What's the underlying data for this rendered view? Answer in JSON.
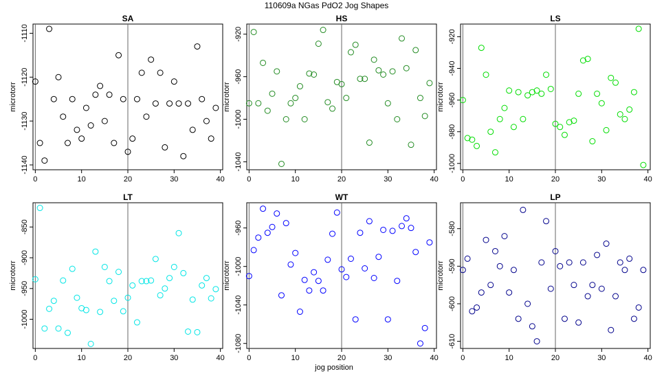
{
  "figure": {
    "title": "110609a   NGas PdO2 Jog Shapes",
    "xlabel": "jog position"
  },
  "chart_data": [
    {
      "type": "scatter",
      "title": "SA",
      "ylabel": "microtorr",
      "color": "#000000",
      "xlim": [
        -0.5,
        40.5
      ],
      "ylim": [
        -1141.1,
        -1107.9
      ],
      "xticks": [
        0,
        10,
        20,
        30,
        40
      ],
      "yticks": [
        -1140,
        -1130,
        -1120,
        -1110
      ],
      "vline": 20,
      "x": [
        0,
        1,
        2,
        3,
        4,
        5,
        6,
        7,
        8,
        9,
        10,
        11,
        12,
        13,
        14,
        15,
        16,
        17,
        18,
        19,
        20,
        21,
        22,
        23,
        24,
        25,
        26,
        27,
        28,
        29,
        30,
        31,
        32,
        33,
        34,
        35,
        36,
        37,
        38,
        39
      ],
      "y": [
        -1121,
        -1135,
        -1139,
        -1109,
        -1125,
        -1120,
        -1129,
        -1135,
        -1125,
        -1132,
        -1134,
        -1127,
        -1131,
        -1124,
        -1122,
        -1130,
        -1124,
        -1135,
        -1115,
        -1125,
        -1137,
        -1134,
        -1125,
        -1119,
        -1129,
        -1116,
        -1126,
        -1119,
        -1136,
        -1126,
        -1121,
        -1126,
        -1138,
        -1126,
        -1132,
        -1113,
        -1125,
        -1130,
        -1134,
        -1127
      ]
    },
    {
      "type": "scatter",
      "title": "HS",
      "ylabel": "microtorr",
      "color": "#228b22",
      "xlim": [
        -0.5,
        40.5
      ],
      "ylim": [
        -1047.5,
        -910.5
      ],
      "xticks": [
        0,
        10,
        20,
        30,
        40
      ],
      "yticks": [
        -1040,
        -1000,
        -960,
        -920
      ],
      "vline": 20,
      "x": [
        0,
        1,
        2,
        3,
        4,
        5,
        6,
        7,
        8,
        9,
        10,
        11,
        12,
        13,
        14,
        15,
        16,
        17,
        18,
        19,
        20,
        21,
        22,
        23,
        24,
        25,
        26,
        27,
        28,
        29,
        30,
        31,
        32,
        33,
        34,
        35,
        36,
        37,
        38,
        39
      ],
      "y": [
        -985,
        -918,
        -985,
        -947,
        -992,
        -976,
        -955,
        -1042,
        -1000,
        -985,
        -980,
        -969,
        -1000,
        -957,
        -958,
        -929,
        -916,
        -984,
        -990,
        -965,
        -967,
        -980,
        -937,
        -930,
        -962,
        -962,
        -1022,
        -944,
        -954,
        -958,
        -985,
        -955,
        -1000,
        -924,
        -952,
        -1024,
        -935,
        -980,
        -997,
        -966
      ]
    },
    {
      "type": "scatter",
      "title": "LS",
      "ylabel": "microtorr",
      "color": "#00dd00",
      "xlim": [
        -0.5,
        40.5
      ],
      "ylim": [
        -1004.0,
        -912.0
      ],
      "xticks": [
        0,
        10,
        20,
        30,
        40
      ],
      "yticks": [
        -1000,
        -980,
        -960,
        -940,
        -920
      ],
      "vline": 20,
      "x": [
        0,
        1,
        2,
        3,
        4,
        5,
        6,
        7,
        8,
        9,
        10,
        11,
        12,
        13,
        14,
        15,
        16,
        17,
        18,
        19,
        20,
        21,
        22,
        23,
        24,
        25,
        26,
        27,
        28,
        29,
        30,
        31,
        32,
        33,
        34,
        35,
        36,
        37,
        38,
        39
      ],
      "y": [
        -960,
        -984,
        -985,
        -989,
        -927,
        -944,
        -980,
        -993,
        -972,
        -965,
        -954,
        -977,
        -955,
        -972,
        -957,
        -955,
        -954,
        -956,
        -944,
        -953,
        -975,
        -977,
        -982,
        -974,
        -973,
        -956,
        -935,
        -934,
        -986,
        -956,
        -962,
        -979,
        -946,
        -949,
        -969,
        -972,
        -966,
        -955,
        -915,
        -1001
      ]
    },
    {
      "type": "scatter",
      "title": "LT",
      "ylabel": "microtorr",
      "color": "#00e5e5",
      "xlim": [
        -0.5,
        40.5
      ],
      "ylim": [
        -1047.4,
        -810.6
      ],
      "xticks": [
        0,
        10,
        20,
        30,
        40
      ],
      "yticks": [
        -1000,
        -950,
        -900,
        -850
      ],
      "vline": 20,
      "x": [
        0,
        1,
        2,
        3,
        4,
        5,
        6,
        7,
        8,
        9,
        10,
        11,
        12,
        13,
        14,
        15,
        16,
        17,
        18,
        19,
        20,
        21,
        22,
        23,
        24,
        25,
        26,
        27,
        28,
        29,
        30,
        31,
        32,
        33,
        34,
        35,
        36,
        37,
        38,
        39
      ],
      "y": [
        -935,
        -819,
        -1015,
        -983,
        -970,
        -1015,
        -937,
        -1022,
        -918,
        -965,
        -982,
        -985,
        -1040,
        -890,
        -988,
        -915,
        -938,
        -970,
        -923,
        -987,
        -965,
        -945,
        -1005,
        -938,
        -938,
        -937,
        -902,
        -961,
        -950,
        -933,
        -915,
        -860,
        -925,
        -1020,
        -968,
        -1021,
        -945,
        -933,
        -966,
        -951
      ]
    },
    {
      "type": "scatter",
      "title": "WT",
      "ylabel": "microtorr",
      "color": "#0000ff",
      "xlim": [
        -0.5,
        40.5
      ],
      "ylim": [
        -1085.2,
        -933.8
      ],
      "xticks": [
        0,
        10,
        20,
        30,
        40
      ],
      "yticks": [
        -1080,
        -1040,
        -1000,
        -960
      ],
      "vline": 20,
      "x": [
        0,
        1,
        2,
        3,
        4,
        5,
        6,
        7,
        8,
        9,
        10,
        11,
        12,
        13,
        14,
        15,
        16,
        17,
        18,
        19,
        20,
        21,
        22,
        23,
        24,
        25,
        26,
        27,
        28,
        29,
        30,
        31,
        32,
        33,
        34,
        35,
        36,
        37,
        38,
        39
      ],
      "y": [
        -1010,
        -983,
        -970,
        -940,
        -965,
        -959,
        -945,
        -1030,
        -955,
        -998,
        -986,
        -1047,
        -1014,
        -1025,
        -1006,
        -1015,
        -1025,
        -993,
        -966,
        -944,
        -1003,
        -1011,
        -992,
        -1055,
        -965,
        -1002,
        -953,
        -1012,
        -990,
        -962,
        -1055,
        -963,
        -1015,
        -958,
        -950,
        -960,
        -985,
        -1080,
        -1064,
        -975
      ]
    },
    {
      "type": "scatter",
      "title": "LP",
      "ylabel": "microtorr",
      "color": "#00008b",
      "xlim": [
        -0.5,
        40.5
      ],
      "ylim": [
        -611.9,
        -573.1
      ],
      "xticks": [
        0,
        10,
        20,
        30,
        40
      ],
      "yticks": [
        -610,
        -600,
        -590,
        -580
      ],
      "vline": 20,
      "x": [
        0,
        1,
        2,
        3,
        4,
        5,
        6,
        7,
        8,
        9,
        10,
        11,
        12,
        13,
        14,
        15,
        16,
        17,
        18,
        19,
        20,
        21,
        22,
        23,
        24,
        25,
        26,
        27,
        28,
        29,
        30,
        31,
        32,
        33,
        34,
        35,
        36,
        37,
        38,
        39
      ],
      "y": [
        -591,
        -588,
        -602,
        -601,
        -597,
        -583,
        -595,
        -586,
        -590,
        -582,
        -597,
        -591,
        -604,
        -575,
        -600,
        -606,
        -610,
        -589,
        -578,
        -596,
        -586,
        -590,
        -604,
        -589,
        -595,
        -605,
        -589,
        -598,
        -595,
        -587,
        -596,
        -584,
        -607,
        -598,
        -589,
        -591,
        -588,
        -604,
        -601,
        -591
      ]
    }
  ]
}
